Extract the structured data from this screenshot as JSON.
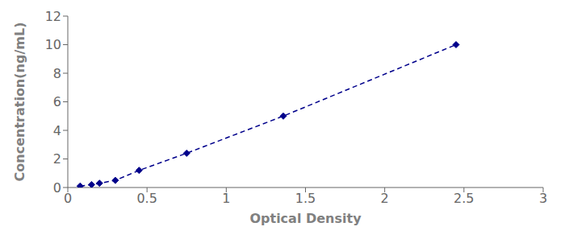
{
  "chart_data": {
    "type": "line",
    "xlabel": "Optical Density",
    "ylabel": "Concentration(ng/mL)",
    "x": [
      0.078,
      0.15,
      0.2,
      0.3,
      0.45,
      0.75,
      1.36,
      2.45
    ],
    "values": [
      0.1,
      0.2,
      0.3,
      0.5,
      1.2,
      2.4,
      5.0,
      10.0
    ],
    "color": "#00008B",
    "marker": "diamond",
    "line_style": "dashed",
    "xlim": [
      0,
      3
    ],
    "ylim": [
      0,
      12
    ],
    "xticks": [
      0,
      0.5,
      1,
      1.5,
      2,
      2.5,
      3
    ],
    "yticks": [
      0,
      2,
      4,
      6,
      8,
      10,
      12
    ],
    "grid": false
  }
}
